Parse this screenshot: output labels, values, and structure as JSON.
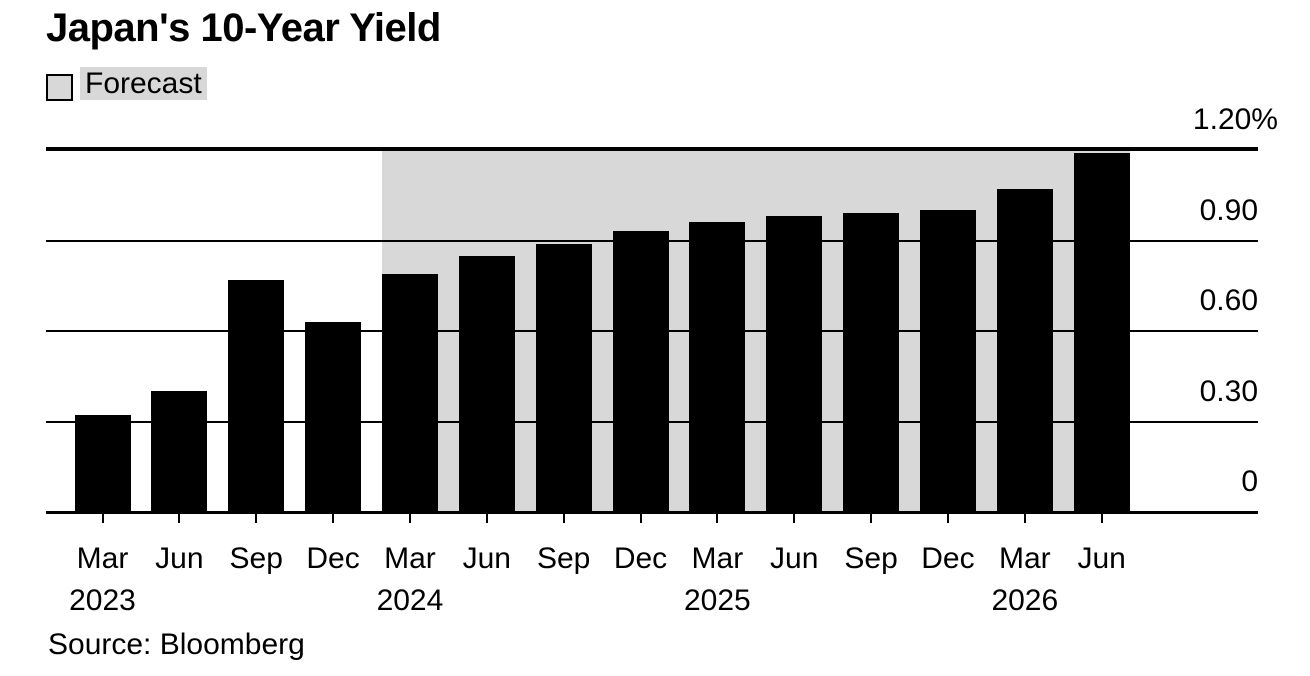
{
  "header": {
    "title": "Japan's 10-Year Yield"
  },
  "legend": {
    "label": "Forecast"
  },
  "footer": {
    "source": "Source: Bloomberg"
  },
  "colors": {
    "bar": "#000000",
    "forecast_band": "#d8d8d8",
    "grid": "#000000",
    "text": "#000000",
    "background": "#ffffff"
  },
  "chart_data": {
    "type": "bar",
    "title": "Japan's 10-Year Yield",
    "unit": "%",
    "categories": [
      "Mar 2023",
      "Jun 2023",
      "Sep 2023",
      "Dec 2023",
      "Mar 2024",
      "Jun 2024",
      "Sep 2024",
      "Dec 2024",
      "Mar 2025",
      "Jun 2025",
      "Sep 2025",
      "Dec 2025",
      "Mar 2026",
      "Jun 2026"
    ],
    "values": [
      0.32,
      0.4,
      0.77,
      0.63,
      0.79,
      0.85,
      0.89,
      0.93,
      0.96,
      0.98,
      0.99,
      1.0,
      1.07,
      1.19
    ],
    "forecast_start_category": "Mar 2024",
    "forecast_start_index": 4,
    "forecast_label": "Forecast",
    "ylim": [
      0,
      1.2
    ],
    "yticks": [
      0,
      0.3,
      0.6,
      0.9,
      1.2
    ],
    "ytick_labels": [
      "0",
      "0.30",
      "0.60",
      "0.90",
      "1.20%"
    ],
    "ytick_side": "right",
    "xtick_labels": [
      "Mar",
      "Jun",
      "Sep",
      "Dec",
      "Mar",
      "Jun",
      "Sep",
      "Dec",
      "Mar",
      "Jun",
      "Sep",
      "Dec",
      "Mar",
      "Jun"
    ],
    "year_marks": [
      {
        "index": 0,
        "label": "2023"
      },
      {
        "index": 4,
        "label": "2024"
      },
      {
        "index": 8,
        "label": "2025"
      },
      {
        "index": 12,
        "label": "2026"
      }
    ],
    "grid": "horizontal",
    "legend_position": "top-left"
  }
}
